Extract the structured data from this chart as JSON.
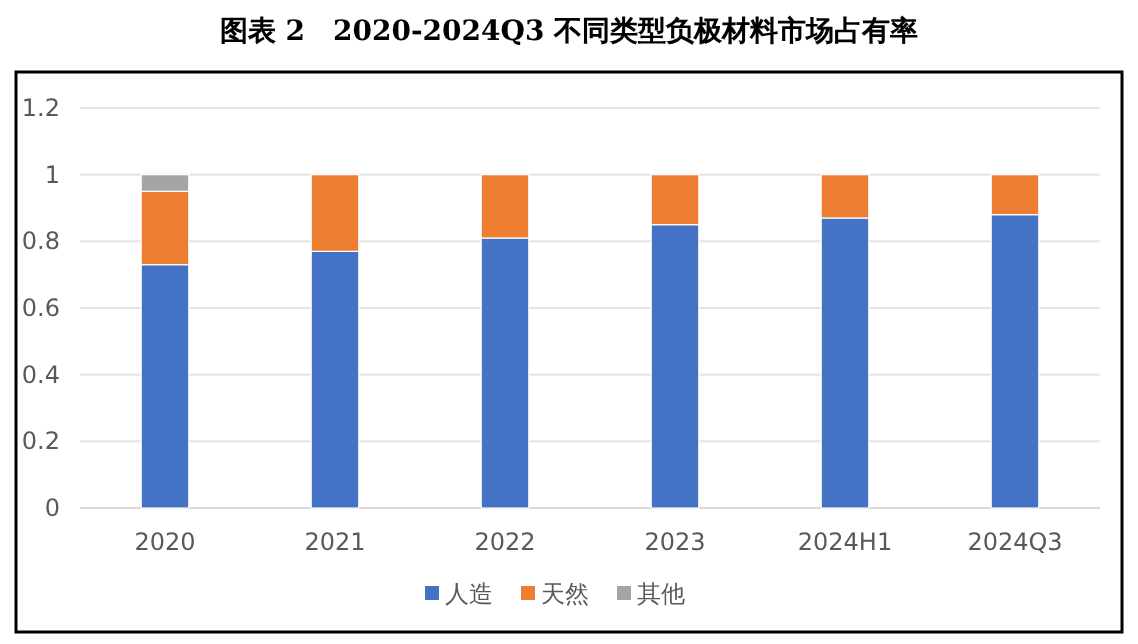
{
  "chart_data": {
    "type": "bar",
    "title": "图表 2　2020-2024Q3 不同类型负极材料市场占有率",
    "categories": [
      "2020",
      "2021",
      "2022",
      "2023",
      "2024H1",
      "2024Q3"
    ],
    "stacked": true,
    "series": [
      {
        "name": "人造",
        "color": "#4472c4",
        "values": [
          0.73,
          0.77,
          0.81,
          0.85,
          0.87,
          0.88
        ]
      },
      {
        "name": "天然",
        "color": "#ed7d31",
        "values": [
          0.22,
          0.23,
          0.19,
          0.15,
          0.13,
          0.12
        ]
      },
      {
        "name": "其他",
        "color": "#a5a5a5",
        "values": [
          0.05,
          null,
          null,
          null,
          null,
          null
        ]
      }
    ],
    "ylim": [
      0,
      1.2
    ],
    "yticks": [
      0,
      0.2,
      0.4,
      0.6,
      0.8,
      1,
      1.2
    ],
    "grid": "y",
    "legend": "bottom"
  }
}
